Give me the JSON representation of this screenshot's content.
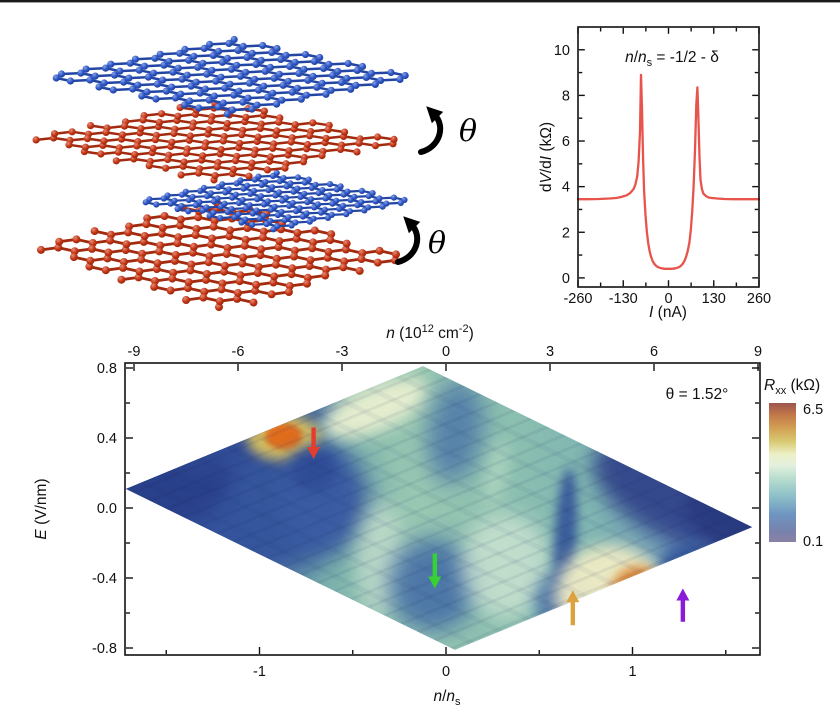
{
  "schematic": {
    "theta_labels": [
      "θ",
      "θ"
    ],
    "layers": [
      {
        "name": "top-layer-blue",
        "color": "#2b55c8"
      },
      {
        "name": "second-layer-red",
        "color": "#c63312"
      },
      {
        "name": "third-layer-blue",
        "color": "#2b55c8"
      },
      {
        "name": "bottom-layer-red",
        "color": "#c63312"
      }
    ]
  },
  "chart_data": [
    {
      "id": "dvdi-vs-current",
      "type": "line",
      "title_text": "n/n_s = -1/2 - δ",
      "title_parts": [
        {
          "t": "n"
        },
        {
          "t": "/"
        },
        {
          "t": "n"
        },
        {
          "t": "s"
        },
        {
          "t": " = -1/2 - "
        },
        {
          "t": "δ"
        }
      ],
      "xlabel_text": "I (nA)",
      "xlabel_parts": [
        {
          "t": "I"
        },
        {
          "t": " (nA)"
        }
      ],
      "ylabel_text": "dV/dI (kΩ)",
      "ylabel_parts": [
        {
          "t": "d"
        },
        {
          "t": "V"
        },
        {
          "t": "/d"
        },
        {
          "t": "I"
        },
        {
          "t": " (kΩ)"
        }
      ],
      "xlim": [
        -260,
        260
      ],
      "ylim": [
        0,
        10
      ],
      "xticks": [
        -260,
        -130,
        0,
        130,
        260
      ],
      "xminor": [
        -195,
        -65,
        65,
        195
      ],
      "yticks": [
        0,
        2,
        4,
        6,
        8,
        10
      ],
      "yminor": [
        1,
        3,
        5,
        7,
        9
      ],
      "line_color": "#e8544b",
      "x": [
        -260,
        -230,
        -200,
        -170,
        -150,
        -135,
        -120,
        -110,
        -100,
        -95,
        -90,
        -86,
        -82,
        -79,
        -76,
        -73,
        -70,
        -66,
        -62,
        -58,
        -54,
        -50,
        -45,
        -40,
        -35,
        -30,
        -20,
        -10,
        0,
        10,
        20,
        30,
        35,
        40,
        45,
        50,
        55,
        60,
        64,
        68,
        72,
        76,
        80,
        83,
        86,
        89,
        92,
        96,
        100,
        108,
        116,
        125,
        140,
        160,
        185,
        215,
        245,
        260
      ],
      "y": [
        3.45,
        3.45,
        3.46,
        3.48,
        3.5,
        3.55,
        3.62,
        3.72,
        3.9,
        4.1,
        4.45,
        5.1,
        6.4,
        8.9,
        7.4,
        5.2,
        3.8,
        2.75,
        2.0,
        1.5,
        1.15,
        0.92,
        0.72,
        0.6,
        0.52,
        0.47,
        0.42,
        0.4,
        0.4,
        0.4,
        0.42,
        0.47,
        0.52,
        0.6,
        0.72,
        0.9,
        1.15,
        1.55,
        2.1,
        2.9,
        4.0,
        5.6,
        7.6,
        8.35,
        7.0,
        5.3,
        4.3,
        3.9,
        3.7,
        3.58,
        3.52,
        3.5,
        3.48,
        3.46,
        3.45,
        3.45,
        3.45,
        3.45
      ]
    },
    {
      "id": "rxx-color-map",
      "type": "heatmap",
      "xlabel_text": "n/n_s",
      "xlabel_parts": [
        {
          "t": "n"
        },
        {
          "t": "/"
        },
        {
          "t": "n"
        },
        {
          "t": "s"
        }
      ],
      "ylabel_text": "E (V/nm)",
      "ylabel_parts": [
        {
          "t": "E"
        },
        {
          "t": " (V/nm)"
        }
      ],
      "top_axis_label_text": "n (10^12 cm^-2)",
      "top_label_parts": [
        {
          "t": "n"
        },
        {
          "t": " (10"
        },
        {
          "t": "12"
        },
        {
          "t": " cm"
        },
        {
          "t": "-2"
        },
        {
          "t": ")"
        }
      ],
      "annotation_text": "θ = 1.52°",
      "xlim": [
        -1.72,
        1.68
      ],
      "ylim": [
        -0.84,
        0.83
      ],
      "xticks": [
        "-1",
        "0",
        "1"
      ],
      "xminor": [
        -1.5,
        -0.5,
        0.5,
        1.5
      ],
      "yticks": [
        "0.8",
        "0.4",
        "0.0",
        "-0.4",
        "-0.8"
      ],
      "yminor": [
        0.6,
        0.2,
        -0.2,
        -0.6
      ],
      "top_ticks": [
        "-9",
        "-6",
        "-3",
        "0",
        "3",
        "6",
        "9"
      ],
      "colorbar": {
        "label_text": "R_xx (kΩ)",
        "label_parts": [
          {
            "t": "R"
          },
          {
            "t": "xx"
          },
          {
            "t": " (kΩ)"
          }
        ],
        "max_label": "6.5",
        "min_label": "0.1",
        "gradient": [
          [
            0,
            "#8a81a5"
          ],
          [
            0.08,
            "#7782ae"
          ],
          [
            0.2,
            "#6f95c1"
          ],
          [
            0.33,
            "#8cc0c9"
          ],
          [
            0.45,
            "#b5dcce"
          ],
          [
            0.55,
            "#e2f0dd"
          ],
          [
            0.63,
            "#eef0c8"
          ],
          [
            0.72,
            "#d8cb74"
          ],
          [
            0.82,
            "#d2a054"
          ],
          [
            0.91,
            "#c47a48"
          ],
          [
            1,
            "#9c564e"
          ]
        ]
      },
      "region": [
        [
          -1.716,
          0.109
        ],
        [
          -0.123,
          0.811
        ],
        [
          1.641,
          -0.109
        ],
        [
          0.048,
          -0.811
        ]
      ],
      "features": [
        {
          "name": "left-navy-region",
          "x": -1.16,
          "y": 0.05,
          "rx": 0.75,
          "ry": 0.46,
          "rot": 0,
          "color": "#33519c",
          "opacity": 0.9,
          "blur": 14
        },
        {
          "name": "left-navy-core",
          "x": -1.5,
          "y": 0.14,
          "rx": 0.34,
          "ry": 0.25,
          "rot": -10,
          "color": "#2b3f8a",
          "opacity": 0.95,
          "blur": 8
        },
        {
          "name": "upper-left-edge-band",
          "x": -1.0,
          "y": 0.42,
          "rx": 0.48,
          "ry": 0.13,
          "rot": -23,
          "color": "#314b94",
          "opacity": 0.6,
          "blur": 8
        },
        {
          "name": "pale-band-top",
          "x": -0.38,
          "y": 0.57,
          "rx": 0.3,
          "ry": 0.13,
          "rot": -23,
          "color": "#eff2d2",
          "opacity": 0.9,
          "blur": 8
        },
        {
          "name": "yellow-halo",
          "x": -0.87,
          "y": 0.4,
          "rx": 0.2,
          "ry": 0.13,
          "rot": 0,
          "color": "#dcc25e",
          "opacity": 0.95,
          "blur": 6
        },
        {
          "name": "orange-hotspot",
          "x": -0.87,
          "y": 0.41,
          "rx": 0.1,
          "ry": 0.075,
          "rot": 0,
          "color": "#e06d1a",
          "opacity": 1,
          "blur": 3
        },
        {
          "name": "blob-below-red-arrow",
          "x": -0.69,
          "y": 0.06,
          "rx": 0.2,
          "ry": 0.29,
          "rot": 0,
          "color": "#3a5ca4",
          "opacity": 0.8,
          "blur": 10
        },
        {
          "name": "blob-red-arrow-core",
          "x": -0.71,
          "y": 0.22,
          "rx": 0.12,
          "ry": 0.12,
          "rot": 0,
          "color": "#2e4b95",
          "opacity": 0.9,
          "blur": 6
        },
        {
          "name": "blob-below-top-vertex",
          "x": 0.05,
          "y": 0.44,
          "rx": 0.15,
          "ry": 0.3,
          "rot": 8,
          "color": "#3e66a6",
          "opacity": 0.7,
          "blur": 12
        },
        {
          "name": "pale-column-left-mid",
          "x": -0.35,
          "y": -0.3,
          "rx": 0.13,
          "ry": 0.33,
          "rot": 0,
          "color": "#dcecd8",
          "opacity": 0.6,
          "blur": 10
        },
        {
          "name": "blob-green-arrow",
          "x": -0.07,
          "y": -0.44,
          "rx": 0.24,
          "ry": 0.27,
          "rot": 0,
          "color": "#3a63a4",
          "opacity": 0.8,
          "blur": 12
        },
        {
          "name": "pale-region-mid",
          "x": 0.32,
          "y": -0.33,
          "rx": 0.24,
          "ry": 0.3,
          "rot": 0,
          "color": "#ddedda",
          "opacity": 0.65,
          "blur": 10
        },
        {
          "name": "pale-sliver",
          "x": 0.27,
          "y": 0.2,
          "rx": 0.05,
          "ry": 0.2,
          "rot": 10,
          "color": "#cfe8cf",
          "opacity": 0.5,
          "blur": 8
        },
        {
          "name": "navy-streak-vertical",
          "x": 0.64,
          "y": -0.2,
          "rx": 0.06,
          "ry": 0.43,
          "rot": 3,
          "color": "#2e4d97",
          "opacity": 0.85,
          "blur": 5
        },
        {
          "name": "streak-foot",
          "x": 0.64,
          "y": -0.53,
          "rx": 0.16,
          "ry": 0.17,
          "rot": 0,
          "color": "#3a61a5",
          "opacity": 0.8,
          "blur": 8
        },
        {
          "name": "cream-region",
          "x": 0.88,
          "y": -0.5,
          "rx": 0.3,
          "ry": 0.29,
          "rot": 0,
          "color": "#f0ecc4",
          "opacity": 0.95,
          "blur": 8
        },
        {
          "name": "cream-bottom-band",
          "x": 0.61,
          "y": -0.75,
          "rx": 0.32,
          "ry": 0.07,
          "rot": -20,
          "color": "#e3d28e",
          "opacity": 0.9,
          "blur": 6
        },
        {
          "name": "orange-ring",
          "x": 1.03,
          "y": -0.53,
          "rx": 0.16,
          "ry": 0.2,
          "rot": 0,
          "color": "#dd8432",
          "opacity": 0.9,
          "blur": 5
        },
        {
          "name": "red-hotspot-core",
          "x": 1.02,
          "y": -0.54,
          "rx": 0.085,
          "ry": 0.135,
          "rot": 0,
          "color": "#b33a10",
          "opacity": 1,
          "blur": 3
        },
        {
          "name": "dark-center",
          "x": 1.02,
          "y": -0.545,
          "rx": 0.045,
          "ry": 0.1,
          "rot": 10,
          "color": "#571505",
          "opacity": 0.9,
          "blur": 2
        },
        {
          "name": "right-edge-navy",
          "x": 1.25,
          "y": 0.08,
          "rx": 0.5,
          "ry": 0.26,
          "rot": 25,
          "color": "#2e4088",
          "opacity": 0.9,
          "blur": 10
        },
        {
          "name": "right-tip-navy",
          "x": 1.52,
          "y": -0.05,
          "rx": 0.24,
          "ry": 0.16,
          "rot": 25,
          "color": "#2a3a80",
          "opacity": 0.95,
          "blur": 6
        },
        {
          "name": "blue-right-of-red",
          "x": 1.33,
          "y": -0.36,
          "rx": 0.18,
          "ry": 0.16,
          "rot": 25,
          "color": "#33549b",
          "opacity": 0.85,
          "blur": 6
        }
      ],
      "arrows": [
        {
          "name": "red-arrow",
          "color": "#e33d2e",
          "x": -0.71,
          "tip_y": 0.28,
          "tail_y": 0.46,
          "dir": "down"
        },
        {
          "name": "green-arrow",
          "color": "#36d133",
          "x": -0.06,
          "tip_y": -0.46,
          "tail_y": -0.26,
          "dir": "down"
        },
        {
          "name": "orange-arrow",
          "color": "#dca23f",
          "x": 0.68,
          "tip_y": -0.47,
          "tail_y": -0.67,
          "dir": "up"
        },
        {
          "name": "purple-arrow",
          "color": "#8a1bd9",
          "x": 1.27,
          "tip_y": -0.46,
          "tail_y": -0.65,
          "dir": "up"
        }
      ]
    }
  ]
}
